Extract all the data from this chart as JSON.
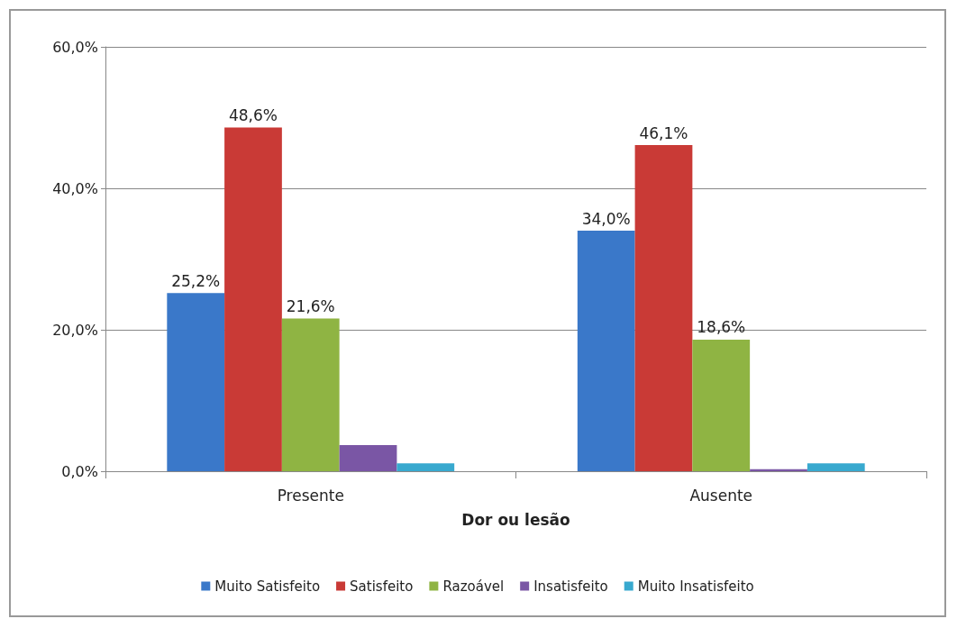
{
  "chart_data": {
    "type": "bar",
    "xlabel": "Dor ou lesão",
    "categories": [
      "Presente",
      "Ausente"
    ],
    "series": [
      {
        "name": "Muito Satisfeito",
        "color": "#3a78c9",
        "values": [
          25.2,
          34.0
        ],
        "value_labels": [
          "25,2%",
          "34,0%"
        ]
      },
      {
        "name": "Satisfeito",
        "color": "#c93a36",
        "values": [
          48.6,
          46.1
        ],
        "value_labels": [
          "48,6%",
          "46,1%"
        ]
      },
      {
        "name": "Razoável",
        "color": "#8fb443",
        "values": [
          21.6,
          18.6
        ],
        "value_labels": [
          "21,6%",
          "18,6%"
        ]
      },
      {
        "name": "Insatisfeito",
        "color": "#7a56a5",
        "values": [
          3.7,
          0.3
        ],
        "value_labels": [
          null,
          null
        ]
      },
      {
        "name": "Muito Insatisfeito",
        "color": "#38a9cf",
        "values": [
          1.1,
          1.1
        ],
        "value_labels": [
          null,
          null
        ]
      }
    ],
    "ylim": [
      0,
      60
    ],
    "yticks": [
      {
        "value": 0,
        "label": "0,0%"
      },
      {
        "value": 20,
        "label": "20,0%"
      },
      {
        "value": 40,
        "label": "40,0%"
      },
      {
        "value": 60,
        "label": "60,0%"
      }
    ],
    "grid": "y",
    "legend": "bottom"
  }
}
